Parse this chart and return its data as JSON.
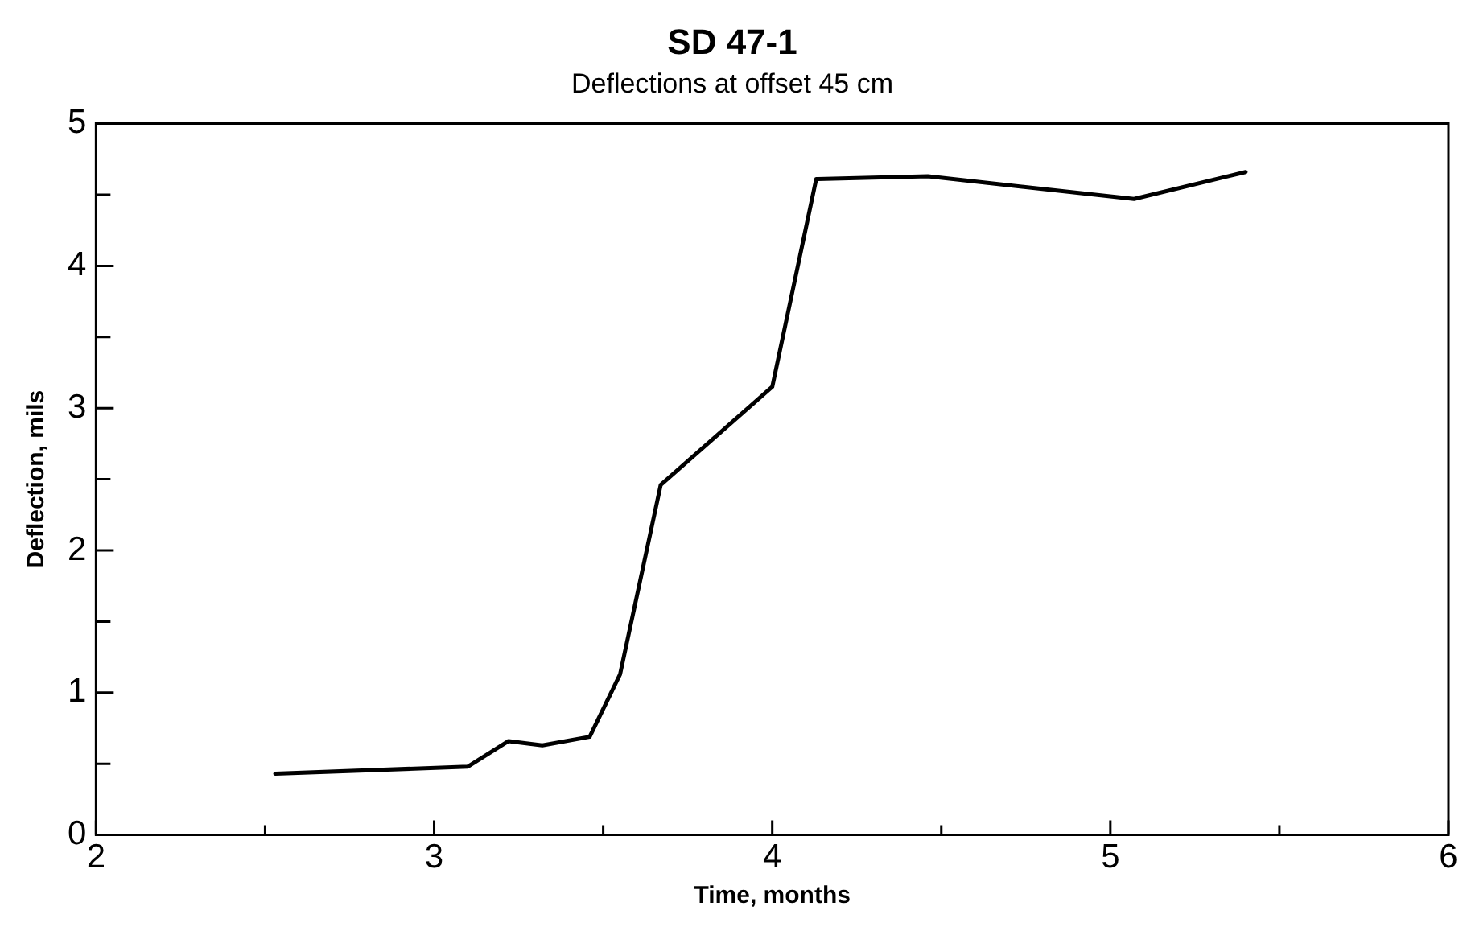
{
  "chart_data": {
    "type": "line",
    "title": "SD 47-1",
    "subtitle": "Deflections at offset 45 cm",
    "xlabel": "Time, months",
    "ylabel": "Deflection, mils",
    "series": [
      {
        "color": "#000000",
        "x": [
          2.53,
          3.1,
          3.22,
          3.32,
          3.46,
          3.55,
          3.67,
          4.0,
          4.13,
          4.46,
          5.07,
          5.4
        ],
        "values": [
          0.43,
          0.48,
          0.66,
          0.63,
          0.69,
          1.13,
          2.46,
          3.15,
          4.61,
          4.63,
          4.47,
          4.66
        ]
      }
    ],
    "xlim": [
      2,
      6
    ],
    "ylim": [
      0,
      5
    ],
    "xticks": [
      2,
      {
        "value": 2.5,
        "label": null
      },
      3,
      {
        "value": 3.5,
        "label": null
      },
      4,
      {
        "value": 4.5,
        "label": null
      },
      5,
      {
        "value": 5.5,
        "label": null
      },
      6
    ],
    "yticks": [
      0,
      {
        "value": 0.5,
        "label": null
      },
      1,
      {
        "value": 1.5,
        "label": null
      },
      2,
      {
        "value": 2.5,
        "label": null
      },
      3,
      {
        "value": 3.5,
        "label": null
      },
      4,
      {
        "value": 4.5,
        "label": null
      },
      5
    ],
    "grid": false,
    "legend": false,
    "marker": "none",
    "line_style": "solid"
  }
}
